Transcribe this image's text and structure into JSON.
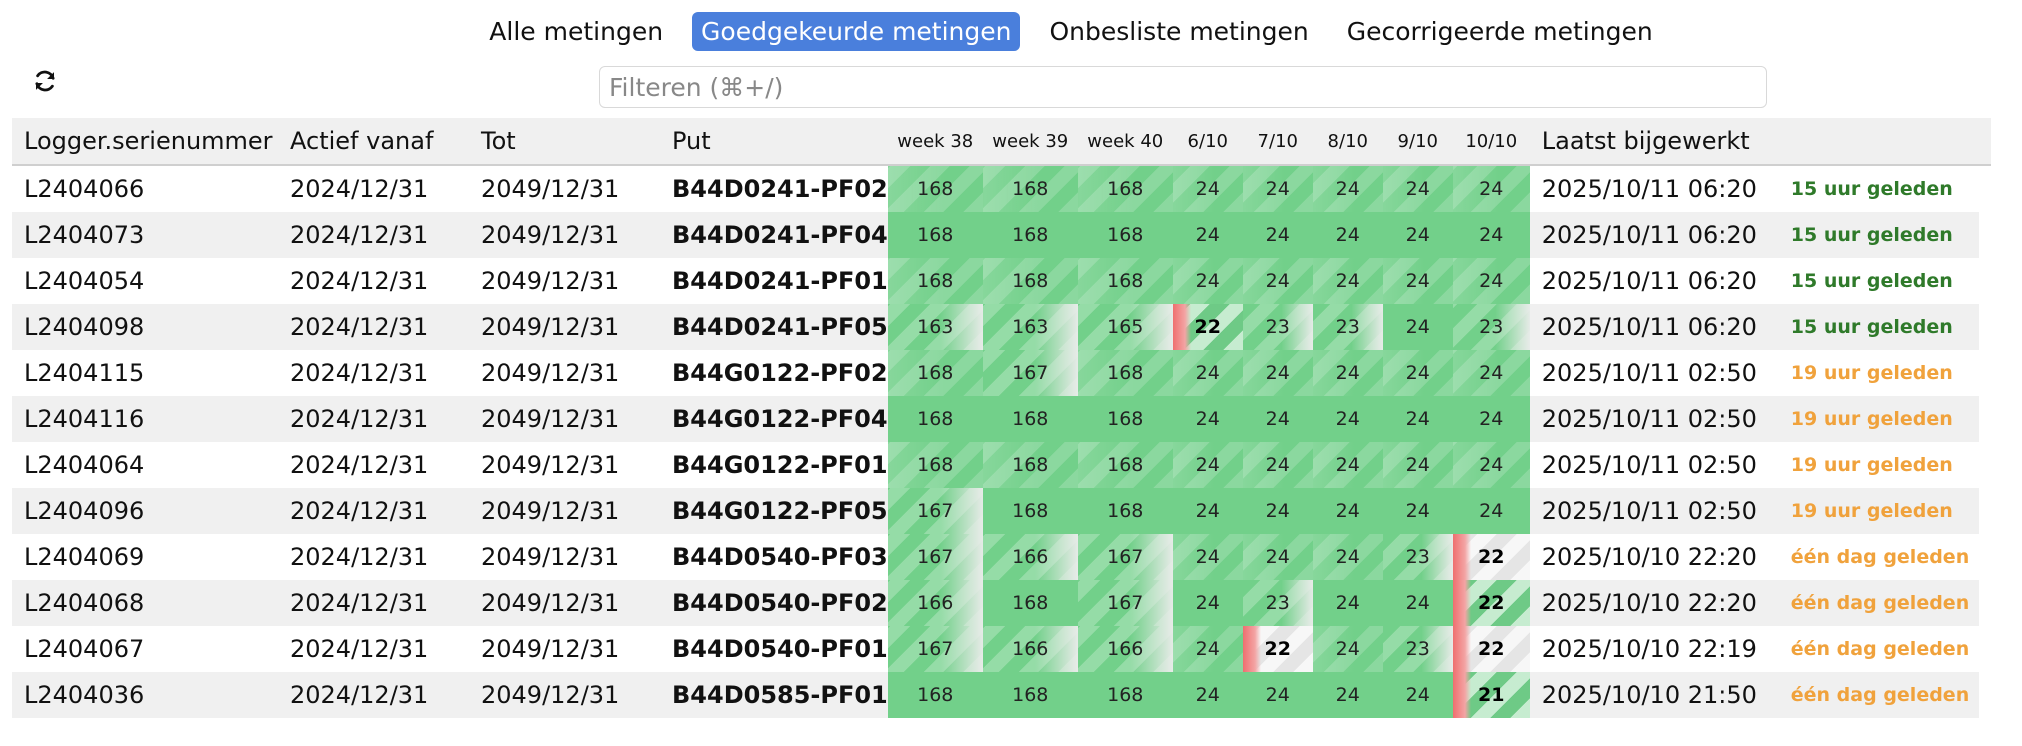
{
  "tabs": [
    {
      "label": "Alle metingen",
      "active": false
    },
    {
      "label": "Goedgekeurde metingen",
      "active": true
    },
    {
      "label": "Onbesliste metingen",
      "active": false
    },
    {
      "label": "Gecorrigeerde metingen",
      "active": false
    }
  ],
  "toolbar": {
    "refresh_icon": "refresh-icon"
  },
  "filter": {
    "placeholder": "Filteren (⌘+/)",
    "value": ""
  },
  "colors": {
    "accent": "#4a7fdc",
    "good": "#72d08a",
    "low": "#ef6f6f",
    "recent": "#2f7a2a",
    "stale": "#f0a23c"
  },
  "table": {
    "headers": {
      "serial": "Logger.serienummer",
      "from": "Actief vanaf",
      "to": "Tot",
      "put": "Put",
      "periods": [
        "week 38",
        "week 39",
        "week 40",
        "6/10",
        "7/10",
        "8/10",
        "9/10",
        "10/10"
      ],
      "updated": "Laatst bijgewerkt"
    },
    "rows": [
      {
        "serial": "L2404066",
        "from": "2024/12/31",
        "to": "2049/12/31",
        "put": "B44D0241-PF02",
        "counts": [
          "168",
          "168",
          "168",
          "24",
          "24",
          "24",
          "24",
          "24"
        ],
        "updated": "2025/10/11 06:20",
        "ago": "15 uur geleden",
        "ago_status": "green"
      },
      {
        "serial": "L2404073",
        "from": "2024/12/31",
        "to": "2049/12/31",
        "put": "B44D0241-PF04",
        "counts": [
          "168",
          "168",
          "168",
          "24",
          "24",
          "24",
          "24",
          "24"
        ],
        "updated": "2025/10/11 06:20",
        "ago": "15 uur geleden",
        "ago_status": "green"
      },
      {
        "serial": "L2404054",
        "from": "2024/12/31",
        "to": "2049/12/31",
        "put": "B44D0241-PF01",
        "counts": [
          "168",
          "168",
          "168",
          "24",
          "24",
          "24",
          "24",
          "24"
        ],
        "updated": "2025/10/11 06:20",
        "ago": "15 uur geleden",
        "ago_status": "green"
      },
      {
        "serial": "L2404098",
        "from": "2024/12/31",
        "to": "2049/12/31",
        "put": "B44D0241-PF05",
        "counts": [
          "163",
          "163",
          "165",
          "22",
          "23",
          "23",
          "24",
          "23"
        ],
        "updated": "2025/10/11 06:20",
        "ago": "15 uur geleden",
        "ago_status": "green"
      },
      {
        "serial": "L2404115",
        "from": "2024/12/31",
        "to": "2049/12/31",
        "put": "B44G0122-PF02",
        "counts": [
          "168",
          "167",
          "168",
          "24",
          "24",
          "24",
          "24",
          "24"
        ],
        "updated": "2025/10/11 02:50",
        "ago": "19 uur geleden",
        "ago_status": "orange"
      },
      {
        "serial": "L2404116",
        "from": "2024/12/31",
        "to": "2049/12/31",
        "put": "B44G0122-PF04",
        "counts": [
          "168",
          "168",
          "168",
          "24",
          "24",
          "24",
          "24",
          "24"
        ],
        "updated": "2025/10/11 02:50",
        "ago": "19 uur geleden",
        "ago_status": "orange"
      },
      {
        "serial": "L2404064",
        "from": "2024/12/31",
        "to": "2049/12/31",
        "put": "B44G0122-PF01",
        "counts": [
          "168",
          "168",
          "168",
          "24",
          "24",
          "24",
          "24",
          "24"
        ],
        "updated": "2025/10/11 02:50",
        "ago": "19 uur geleden",
        "ago_status": "orange"
      },
      {
        "serial": "L2404096",
        "from": "2024/12/31",
        "to": "2049/12/31",
        "put": "B44G0122-PF05",
        "counts": [
          "167",
          "168",
          "168",
          "24",
          "24",
          "24",
          "24",
          "24"
        ],
        "updated": "2025/10/11 02:50",
        "ago": "19 uur geleden",
        "ago_status": "orange"
      },
      {
        "serial": "L2404069",
        "from": "2024/12/31",
        "to": "2049/12/31",
        "put": "B44D0540-PF03",
        "counts": [
          "167",
          "166",
          "167",
          "24",
          "24",
          "24",
          "23",
          "22"
        ],
        "updated": "2025/10/10 22:20",
        "ago": "één dag geleden",
        "ago_status": "orange"
      },
      {
        "serial": "L2404068",
        "from": "2024/12/31",
        "to": "2049/12/31",
        "put": "B44D0540-PF02",
        "counts": [
          "166",
          "168",
          "167",
          "24",
          "23",
          "24",
          "24",
          "22"
        ],
        "updated": "2025/10/10 22:20",
        "ago": "één dag geleden",
        "ago_status": "orange"
      },
      {
        "serial": "L2404067",
        "from": "2024/12/31",
        "to": "2049/12/31",
        "put": "B44D0540-PF01",
        "counts": [
          "167",
          "166",
          "166",
          "24",
          "22",
          "24",
          "23",
          "22"
        ],
        "updated": "2025/10/10 22:19",
        "ago": "één dag geleden",
        "ago_status": "orange"
      },
      {
        "serial": "L2404036",
        "from": "2024/12/31",
        "to": "2049/12/31",
        "put": "B44D0585-PF01",
        "counts": [
          "168",
          "168",
          "168",
          "24",
          "24",
          "24",
          "24",
          "21"
        ],
        "updated": "2025/10/10 21:50",
        "ago": "één dag geleden",
        "ago_status": "orange"
      }
    ]
  }
}
